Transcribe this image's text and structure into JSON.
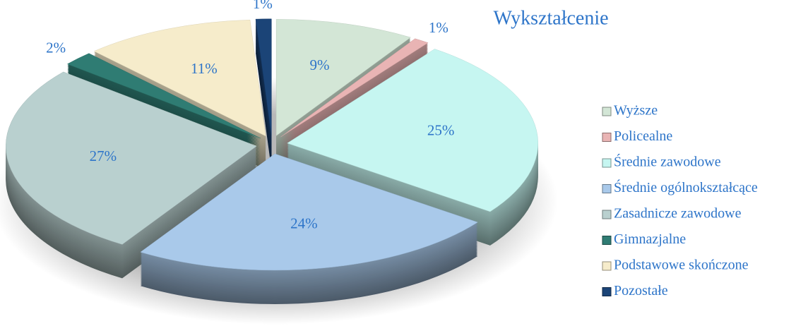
{
  "chart_data": {
    "type": "pie",
    "title": "Wykształcenie",
    "categories": [
      "Wyższe",
      "Policealne",
      "Średnie zawodowe",
      "Średnie ogólnokształcące",
      "Zasadnicze zawodowe",
      "Gimnazjalne",
      "Podstawowe skończone",
      "Pozostałe"
    ],
    "values": [
      9,
      1,
      25,
      24,
      27,
      2,
      11,
      1
    ],
    "value_labels": [
      "9%",
      "1%",
      "25%",
      "24%",
      "27%",
      "2%",
      "11%",
      "1%"
    ],
    "colors": [
      "#d3e6d6",
      "#e9b4b4",
      "#c6f6f1",
      "#a9c9ea",
      "#b9d0cf",
      "#2f7c73",
      "#f6eccb",
      "#1b4477"
    ],
    "legend": "right"
  }
}
